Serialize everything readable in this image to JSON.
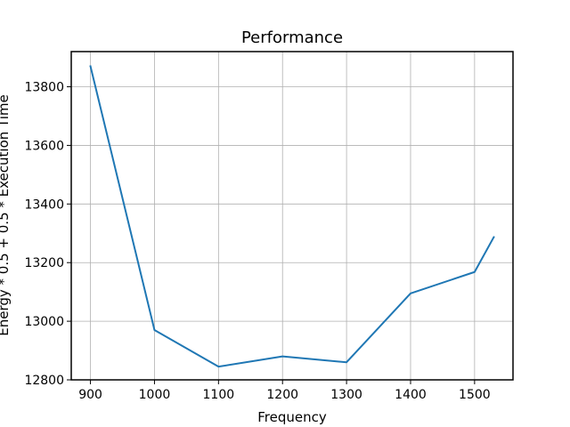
{
  "chart_data": {
    "type": "line",
    "title": "Performance",
    "xlabel": "Frequency",
    "ylabel": "Energy * 0.5 + 0.5 * Execution Time",
    "xlim": [
      870,
      1560
    ],
    "ylim": [
      12800,
      13920
    ],
    "xticks": [
      900,
      1000,
      1100,
      1200,
      1300,
      1400,
      1500
    ],
    "yticks": [
      12800,
      13000,
      13200,
      13400,
      13600,
      13800
    ],
    "grid": true,
    "series": [
      {
        "color": "#1f77b4",
        "x": [
          900,
          1000,
          1100,
          1200,
          1300,
          1400,
          1500,
          1530
        ],
        "y": [
          13870,
          12970,
          12845,
          12880,
          12860,
          13095,
          13168,
          13287
        ]
      }
    ]
  }
}
